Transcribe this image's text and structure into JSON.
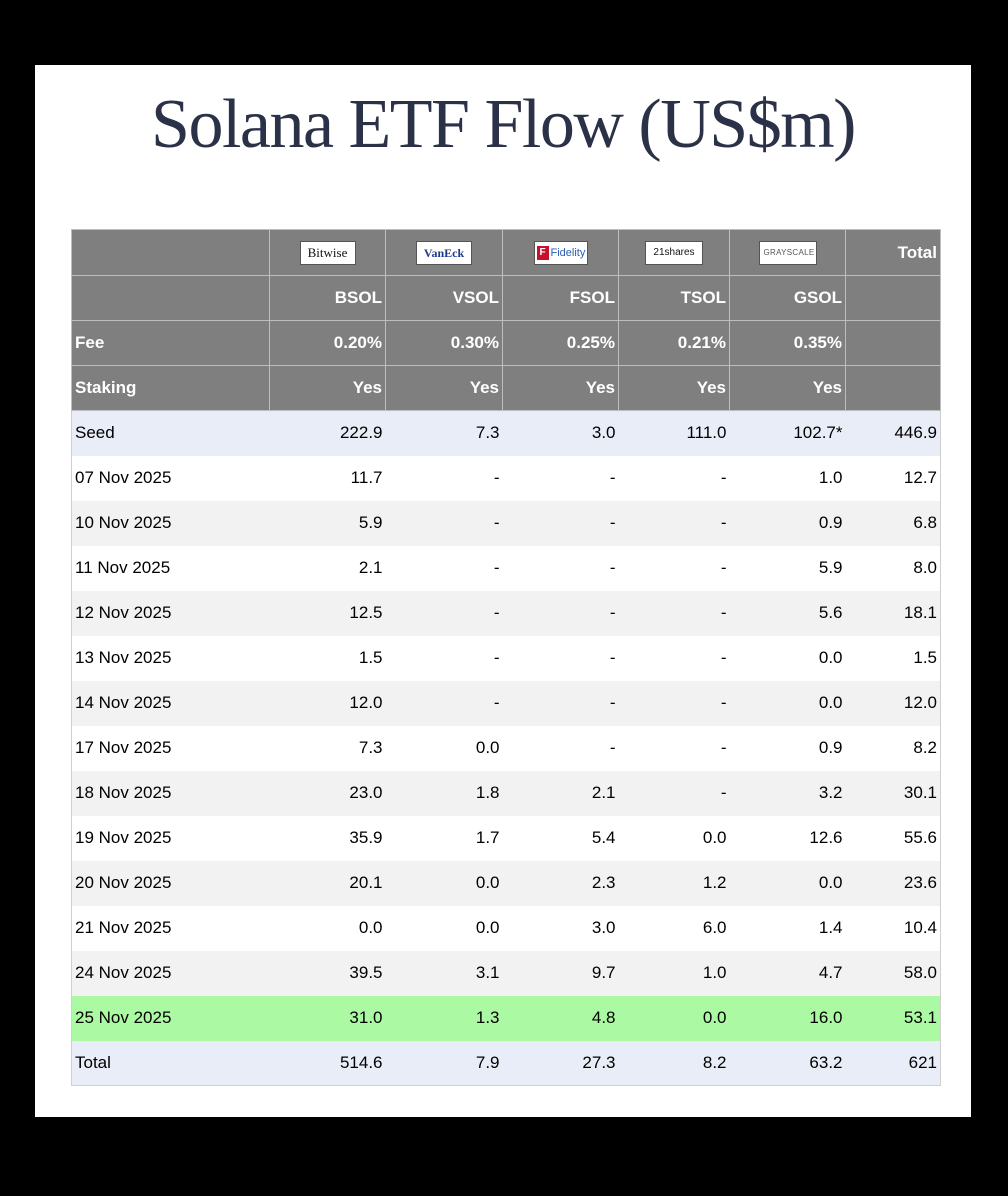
{
  "title": "Solana ETF Flow (US$m)",
  "issuers": [
    {
      "logo_text": "Bitwise",
      "logo_icon": "bitwise-logo"
    },
    {
      "logo_text": "VanEck",
      "logo_icon": "vaneck-logo"
    },
    {
      "logo_text": "Fidelity",
      "logo_icon": "fidelity-logo"
    },
    {
      "logo_text": "21shares",
      "logo_icon": "21shares-logo"
    },
    {
      "logo_text": "GRAYSCALE",
      "logo_icon": "grayscale-logo"
    }
  ],
  "header": {
    "total_label": "Total",
    "tickers": [
      "BSOL",
      "VSOL",
      "FSOL",
      "TSOL",
      "GSOL"
    ],
    "fee_label": "Fee",
    "fees": [
      "0.20%",
      "0.30%",
      "0.25%",
      "0.21%",
      "0.35%"
    ],
    "staking_label": "Staking",
    "staking": [
      "Yes",
      "Yes",
      "Yes",
      "Yes",
      "Yes"
    ]
  },
  "rows": [
    {
      "label": "Seed",
      "values": [
        "222.9",
        "7.3",
        "3.0",
        "111.0",
        "102.7*",
        "446.9"
      ]
    },
    {
      "label": "07 Nov 2025",
      "values": [
        "11.7",
        "-",
        "-",
        "-",
        "1.0",
        "12.7"
      ]
    },
    {
      "label": "10 Nov 2025",
      "values": [
        "5.9",
        "-",
        "-",
        "-",
        "0.9",
        "6.8"
      ]
    },
    {
      "label": "11 Nov 2025",
      "values": [
        "2.1",
        "-",
        "-",
        "-",
        "5.9",
        "8.0"
      ]
    },
    {
      "label": "12 Nov 2025",
      "values": [
        "12.5",
        "-",
        "-",
        "-",
        "5.6",
        "18.1"
      ]
    },
    {
      "label": "13 Nov 2025",
      "values": [
        "1.5",
        "-",
        "-",
        "-",
        "0.0",
        "1.5"
      ]
    },
    {
      "label": "14 Nov 2025",
      "values": [
        "12.0",
        "-",
        "-",
        "-",
        "0.0",
        "12.0"
      ]
    },
    {
      "label": "17 Nov 2025",
      "values": [
        "7.3",
        "0.0",
        "-",
        "-",
        "0.9",
        "8.2"
      ]
    },
    {
      "label": "18 Nov 2025",
      "values": [
        "23.0",
        "1.8",
        "2.1",
        "-",
        "3.2",
        "30.1"
      ]
    },
    {
      "label": "19 Nov 2025",
      "values": [
        "35.9",
        "1.7",
        "5.4",
        "0.0",
        "12.6",
        "55.6"
      ]
    },
    {
      "label": "20 Nov 2025",
      "values": [
        "20.1",
        "0.0",
        "2.3",
        "1.2",
        "0.0",
        "23.6"
      ]
    },
    {
      "label": "21 Nov 2025",
      "values": [
        "0.0",
        "0.0",
        "3.0",
        "6.0",
        "1.4",
        "10.4"
      ]
    },
    {
      "label": "24 Nov 2025",
      "values": [
        "39.5",
        "3.1",
        "9.7",
        "1.0",
        "4.7",
        "58.0"
      ]
    },
    {
      "label": "25 Nov 2025",
      "values": [
        "31.0",
        "1.3",
        "4.8",
        "0.0",
        "16.0",
        "53.1"
      ]
    }
  ],
  "total_row": {
    "label": "Total",
    "values": [
      "514.6",
      "7.9",
      "27.3",
      "8.2",
      "63.2",
      "621"
    ]
  },
  "colors": {
    "header_bg": "#7f7f7f",
    "seed_total_bg": "#e9edf7",
    "highlight_bg": "#acf9a3",
    "title_color": "#2b3147"
  }
}
